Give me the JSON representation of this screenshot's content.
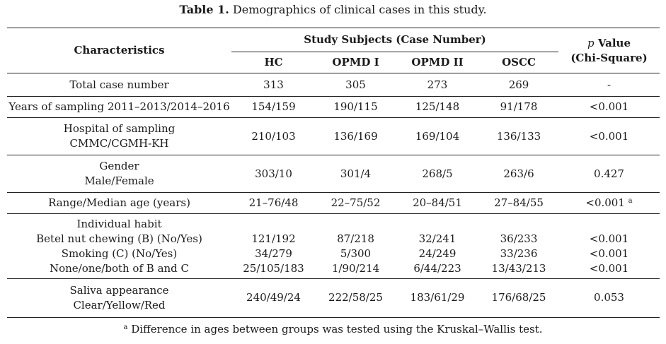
{
  "caption": {
    "label": "Table 1.",
    "text": "Demographics of clinical cases in this study."
  },
  "header": {
    "characteristics": "Characteristics",
    "study_subjects": "Study Subjects (Case Number)",
    "p_symbol": "p",
    "p_value": "Value",
    "chi_square": "(Chi-Square)",
    "groups": [
      "HC",
      "OPMD I",
      "OPMD II",
      "OSCC"
    ]
  },
  "rows": {
    "total": {
      "label": "Total case number",
      "values": [
        "313",
        "305",
        "273",
        "269"
      ],
      "p": "-"
    },
    "years": {
      "label": "Years of sampling 2011–2013/2014–2016",
      "values": [
        "154/159",
        "190/115",
        "125/148",
        "91/178"
      ],
      "p": "<0.001"
    },
    "hospital": {
      "label1": "Hospital of sampling",
      "label2": "CMMC/CGMH-KH",
      "values": [
        "210/103",
        "136/169",
        "169/104",
        "136/133"
      ],
      "p": "<0.001"
    },
    "gender": {
      "label1": "Gender",
      "label2": "Male/Female",
      "values": [
        "303/10",
        "301/4",
        "268/5",
        "263/6"
      ],
      "p": "0.427"
    },
    "age": {
      "label": "Range/Median age (years)",
      "values": [
        "21–76/48",
        "22–75/52",
        "20–84/51",
        "27–84/55"
      ],
      "p": "<0.001",
      "p_sup": "a"
    },
    "habit": {
      "label": "Individual habit",
      "sub": [
        {
          "label": "Betel nut chewing (B) (No/Yes)",
          "values": [
            "121/192",
            "87/218",
            "32/241",
            "36/233"
          ],
          "p": "<0.001"
        },
        {
          "label": "Smoking (C) (No/Yes)",
          "values": [
            "34/279",
            "5/300",
            "24/249",
            "33/236"
          ],
          "p": "<0.001"
        },
        {
          "label": "None/one/both of B and C",
          "values": [
            "25/105/183",
            "1/90/214",
            "6/44/223",
            "13/43/213"
          ],
          "p": "<0.001"
        }
      ]
    },
    "saliva": {
      "label1": "Saliva appearance",
      "label2": "Clear/Yellow/Red",
      "values": [
        "240/49/24",
        "222/58/25",
        "183/61/29",
        "176/68/25"
      ],
      "p": "0.053"
    }
  },
  "footnote": {
    "sup": "a",
    "text": "Difference in ages between groups was tested using the Kruskal–Wallis test."
  }
}
